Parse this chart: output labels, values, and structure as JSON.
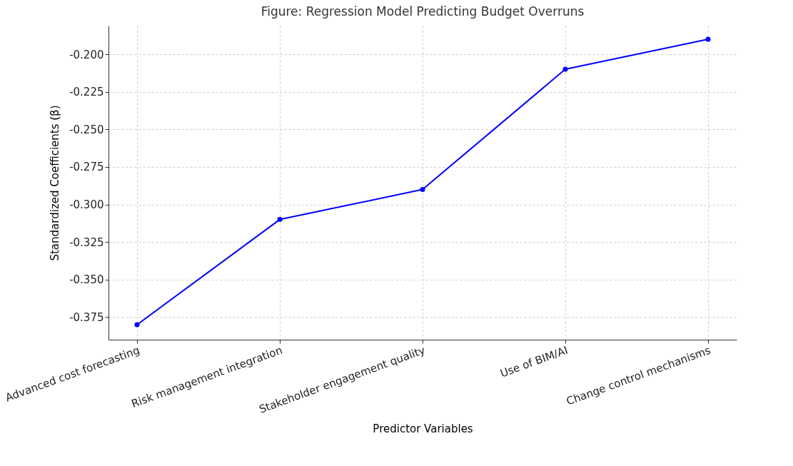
{
  "chart_data": {
    "type": "line",
    "title": "Figure: Regression Model Predicting Budget Overruns",
    "xlabel": "Predictor Variables",
    "ylabel": "Standardized Coefficients (β)",
    "categories": [
      "Advanced cost forecasting",
      "Risk management integration",
      "Stakeholder engagement quality",
      "Use of BIM/AI",
      "Change control mechanisms"
    ],
    "series": [
      {
        "color": "#0000ff",
        "values": [
          -0.38,
          -0.31,
          -0.29,
          -0.21,
          -0.19
        ]
      }
    ],
    "ylim": [
      -0.39,
      -0.181
    ],
    "yticks": [
      {
        "value": -0.375,
        "label": "-0.375"
      },
      {
        "value": -0.35,
        "label": "-0.350"
      },
      {
        "value": -0.325,
        "label": "-0.325"
      },
      {
        "value": -0.3,
        "label": "-0.300"
      },
      {
        "value": -0.275,
        "label": "-0.275"
      },
      {
        "value": -0.25,
        "label": "-0.250"
      },
      {
        "value": -0.225,
        "label": "-0.225"
      },
      {
        "value": -0.2,
        "label": "-0.200"
      }
    ],
    "grid": true,
    "marker": "circle",
    "line_style": "solid"
  }
}
